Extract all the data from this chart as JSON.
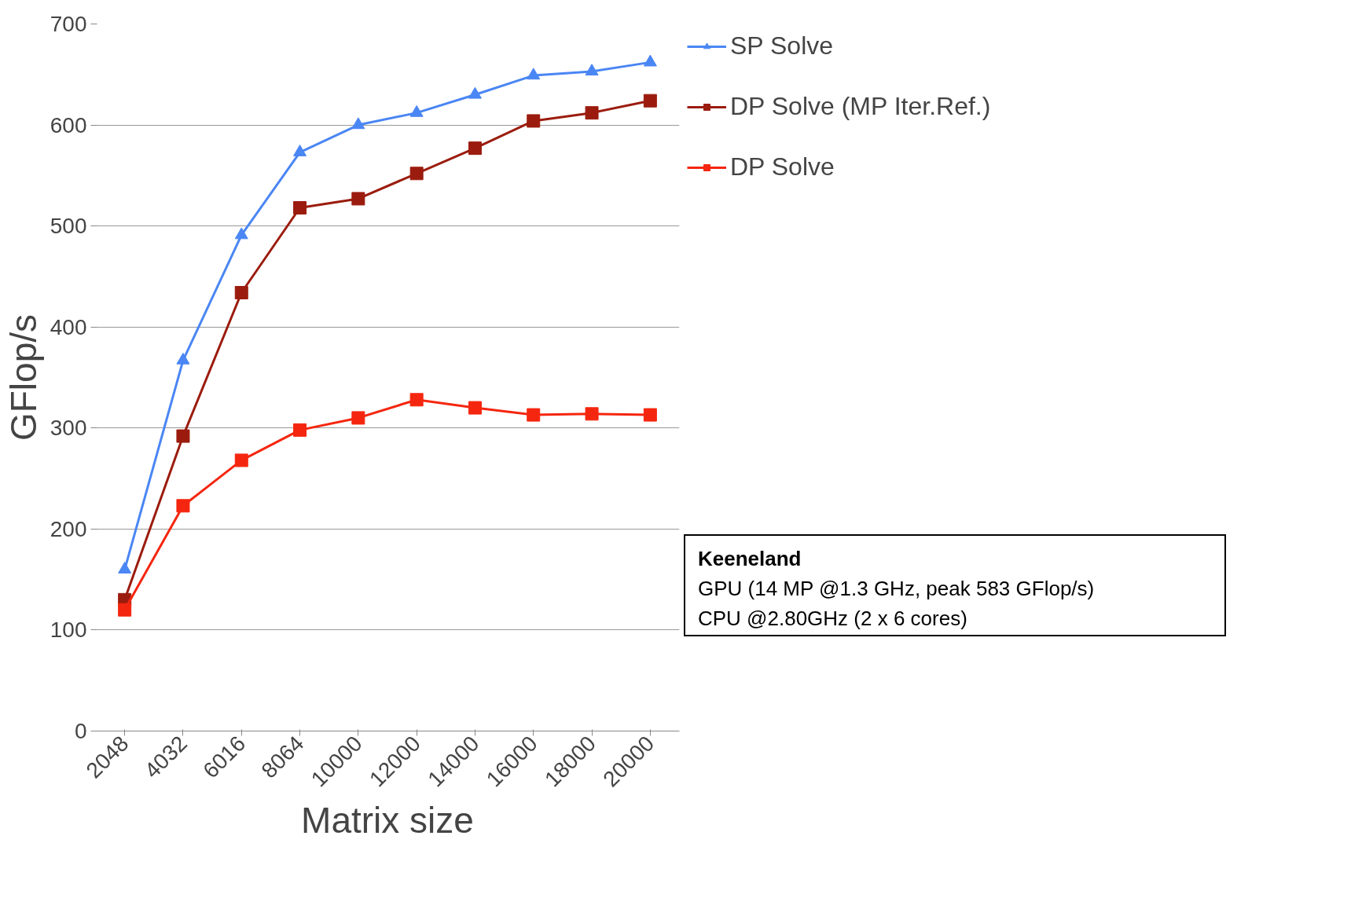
{
  "chart_data": {
    "type": "line",
    "xlabel": "Matrix size",
    "ylabel": "GFlop/s",
    "categories": [
      "2048",
      "4032",
      "6016",
      "8064",
      "10000",
      "12000",
      "14000",
      "16000",
      "18000",
      "20000"
    ],
    "series": [
      {
        "name": "SP Solve",
        "color": "#4a86f4",
        "marker": "triangle",
        "values": [
          160,
          367,
          491,
          573,
          600,
          612,
          630,
          649,
          653,
          662
        ]
      },
      {
        "name": "DP Solve (MP Iter.Ref.)",
        "color": "#9b1c0e",
        "marker": "square",
        "values": [
          130,
          292,
          434,
          518,
          527,
          552,
          577,
          604,
          612,
          624
        ]
      },
      {
        "name": "DP Solve",
        "color": "#f5260f",
        "marker": "square",
        "values": [
          120,
          223,
          268,
          298,
          310,
          328,
          320,
          313,
          314,
          313
        ]
      }
    ],
    "ylim": [
      0,
      700
    ],
    "yticks": [
      0,
      100,
      200,
      300,
      400,
      500,
      600,
      700
    ],
    "grid": "y",
    "legend": "top right",
    "annotations": [
      "Keeneland",
      "GPU (14 MP @1.3 GHz, peak 583 GFlop/s)",
      "CPU @2.80GHz (2 x 6 cores)"
    ]
  }
}
